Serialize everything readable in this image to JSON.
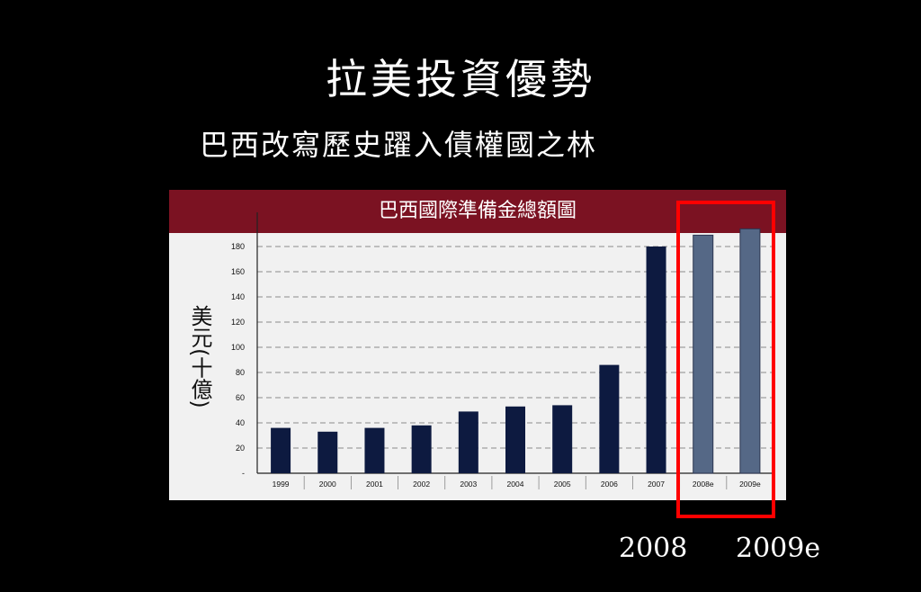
{
  "slide": {
    "title": "拉美投資優勢",
    "subtitle": "巴西改寫歷史躍入債權國之林",
    "bottom_labels": [
      "2008",
      "2009e"
    ]
  },
  "colors": {
    "background": "#000000",
    "header": "#7b1222",
    "bar_actual": "#0d1a40",
    "bar_estimate": "#556886",
    "highlight": "#ff0000"
  },
  "chart_data": {
    "type": "bar",
    "title": "巴西國際準備金總額圖",
    "ylabel": "美元(十億)",
    "xlabel": "",
    "categories": [
      "1999",
      "2000",
      "2001",
      "2002",
      "2003",
      "2004",
      "2005",
      "2006",
      "2007",
      "2008e",
      "2009e"
    ],
    "values": [
      36,
      33,
      36,
      38,
      49,
      53,
      54,
      86,
      180,
      189,
      194
    ],
    "estimate": [
      false,
      false,
      false,
      false,
      false,
      false,
      false,
      false,
      false,
      true,
      true
    ],
    "ylim": [
      0,
      200
    ],
    "yticks": [
      0,
      20,
      40,
      60,
      80,
      100,
      120,
      140,
      160,
      180
    ],
    "ytick_labels": [
      "-",
      "20",
      "40",
      "60",
      "80",
      "100",
      "120",
      "140",
      "160",
      "180"
    ],
    "grid": true
  }
}
